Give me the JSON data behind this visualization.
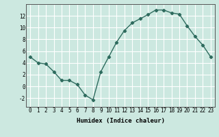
{
  "x": [
    0,
    1,
    2,
    3,
    4,
    5,
    6,
    7,
    8,
    9,
    10,
    11,
    12,
    13,
    14,
    15,
    16,
    17,
    18,
    19,
    20,
    21,
    22,
    23
  ],
  "y": [
    5.0,
    4.0,
    3.8,
    2.5,
    1.0,
    1.0,
    0.3,
    -1.5,
    -2.3,
    2.5,
    5.0,
    7.5,
    9.5,
    10.8,
    11.5,
    12.2,
    13.0,
    13.0,
    12.5,
    12.3,
    10.3,
    8.5,
    7.0,
    5.0
  ],
  "xlabel": "Humidex (Indice chaleur)",
  "ylim": [
    -3.5,
    14
  ],
  "xlim": [
    -0.5,
    23.5
  ],
  "yticks": [
    -2,
    0,
    2,
    4,
    6,
    8,
    10,
    12
  ],
  "xticks": [
    0,
    1,
    2,
    3,
    4,
    5,
    6,
    7,
    8,
    9,
    10,
    11,
    12,
    13,
    14,
    15,
    16,
    17,
    18,
    19,
    20,
    21,
    22,
    23
  ],
  "line_color": "#2e6b5e",
  "bg_color": "#cce8e0",
  "grid_color": "#ffffff",
  "marker": "D",
  "marker_size": 2.2,
  "line_width": 1.0,
  "tick_fontsize": 5.5,
  "xlabel_fontsize": 6.5
}
